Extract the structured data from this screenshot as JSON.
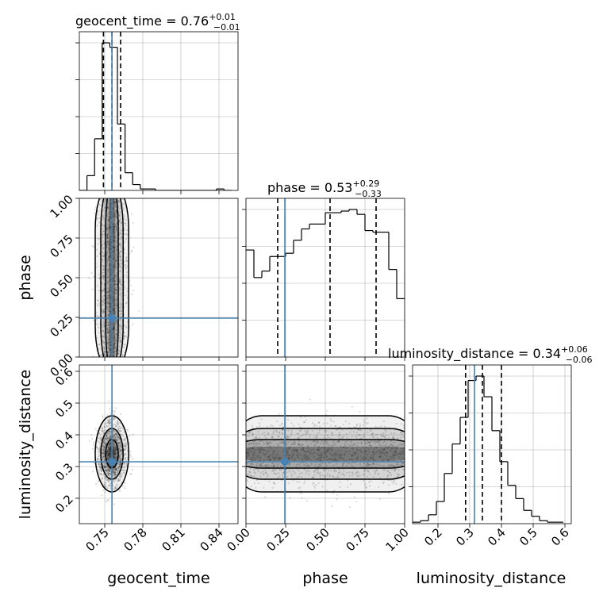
{
  "chart_data": [
    {
      "type": "histogram",
      "panel": "geocent_time",
      "title": "geocent_time = 0.76",
      "title_sup": "+0.01",
      "title_sub": "−0.01",
      "xlim": [
        0.73,
        0.855
      ],
      "bin_edges": [
        0.73,
        0.736,
        0.742,
        0.748,
        0.754,
        0.76,
        0.766,
        0.772,
        0.778,
        0.784,
        0.79,
        0.796,
        0.802,
        0.808,
        0.814,
        0.82,
        0.826,
        0.832,
        0.838,
        0.844,
        0.85
      ],
      "counts": [
        0,
        0.1,
        0.35,
        1.0,
        0.97,
        0.45,
        0.12,
        0.04,
        0.01,
        0.01,
        0,
        0,
        0,
        0,
        0,
        0,
        0,
        0,
        0.01,
        0
      ],
      "quantiles": [
        0.749,
        0.7557,
        0.7625
      ],
      "truth": 0.7557
    },
    {
      "type": "histogram",
      "panel": "phase",
      "title": "phase = 0.53",
      "title_sup": "+0.29",
      "title_sub": "−0.33",
      "xlim": [
        0,
        1.0
      ],
      "bin_edges": [
        0,
        0.05,
        0.1,
        0.15,
        0.2,
        0.25,
        0.3,
        0.35,
        0.4,
        0.45,
        0.5,
        0.55,
        0.6,
        0.65,
        0.7,
        0.75,
        0.8,
        0.85,
        0.9,
        0.95,
        1.0
      ],
      "counts": [
        0.66,
        0.49,
        0.53,
        0.62,
        0.62,
        0.64,
        0.72,
        0.79,
        0.82,
        0.82,
        0.89,
        0.89,
        0.9,
        0.91,
        0.88,
        0.78,
        0.77,
        0.77,
        0.54,
        0.36
      ],
      "quantiles": [
        0.2,
        0.53,
        0.82
      ],
      "truth": 0.245
    },
    {
      "type": "histogram",
      "panel": "luminosity_distance",
      "title": "luminosity_distance = 0.34",
      "title_sup": "+0.06",
      "title_sub": "−0.06",
      "xlim": [
        0.12,
        0.62
      ],
      "bin_edges": [
        0.12,
        0.145,
        0.17,
        0.195,
        0.22,
        0.245,
        0.27,
        0.295,
        0.32,
        0.345,
        0.37,
        0.395,
        0.42,
        0.445,
        0.47,
        0.495,
        0.52,
        0.545,
        0.57,
        0.595
      ],
      "counts": [
        0.01,
        0.02,
        0.06,
        0.15,
        0.34,
        0.54,
        0.72,
        0.97,
        1.0,
        0.86,
        0.63,
        0.42,
        0.26,
        0.17,
        0.09,
        0.05,
        0.02,
        0.01,
        0.01
      ],
      "quantiles": [
        0.287,
        0.34,
        0.4
      ],
      "truth": 0.315
    },
    {
      "type": "scatter-contour",
      "panel": "geocent_time vs phase",
      "x_param": "geocent_time",
      "y_param": "phase",
      "xlim": [
        0.73,
        0.855
      ],
      "ylim": [
        0,
        1.0
      ],
      "x_center": 0.7557,
      "x_spread": 0.0055,
      "truth": [
        0.7557,
        0.245
      ]
    },
    {
      "type": "scatter-contour",
      "panel": "geocent_time vs luminosity_distance",
      "x_param": "geocent_time",
      "y_param": "luminosity_distance",
      "xlim": [
        0.73,
        0.855
      ],
      "ylim": [
        0.12,
        0.62
      ],
      "center": [
        0.7557,
        0.34
      ],
      "spread": [
        0.0055,
        0.05
      ],
      "truth": [
        0.7557,
        0.315
      ]
    },
    {
      "type": "scatter-contour",
      "panel": "phase vs luminosity_distance",
      "x_param": "phase",
      "y_param": "luminosity_distance",
      "xlim": [
        0,
        1.0
      ],
      "ylim": [
        0.12,
        0.62
      ],
      "y_center": 0.34,
      "y_spread": 0.05,
      "truth": [
        0.245,
        0.315
      ]
    }
  ],
  "axes": {
    "geocent_time": {
      "label": "geocent_time",
      "ticks": [
        0.75,
        0.78,
        0.81,
        0.84
      ],
      "tick_labels": [
        "0.75",
        "0.78",
        "0.81",
        "0.84"
      ]
    },
    "phase": {
      "label": "phase",
      "ticks": [
        0,
        0.25,
        0.5,
        0.75,
        1.0
      ],
      "tick_labels": [
        "0.00",
        "0.25",
        "0.50",
        "0.75",
        "1.00"
      ]
    },
    "luminosity_distance": {
      "label": "luminosity_distance",
      "ticks": [
        0.2,
        0.3,
        0.4,
        0.5,
        0.6
      ],
      "tick_labels": [
        "0.2",
        "0.3",
        "0.4",
        "0.5",
        "0.6"
      ]
    }
  },
  "colors": {
    "truth": "#4682b4",
    "contour": "#000000",
    "grid": "#b0b0b0",
    "density": "#000000"
  },
  "grid": true
}
